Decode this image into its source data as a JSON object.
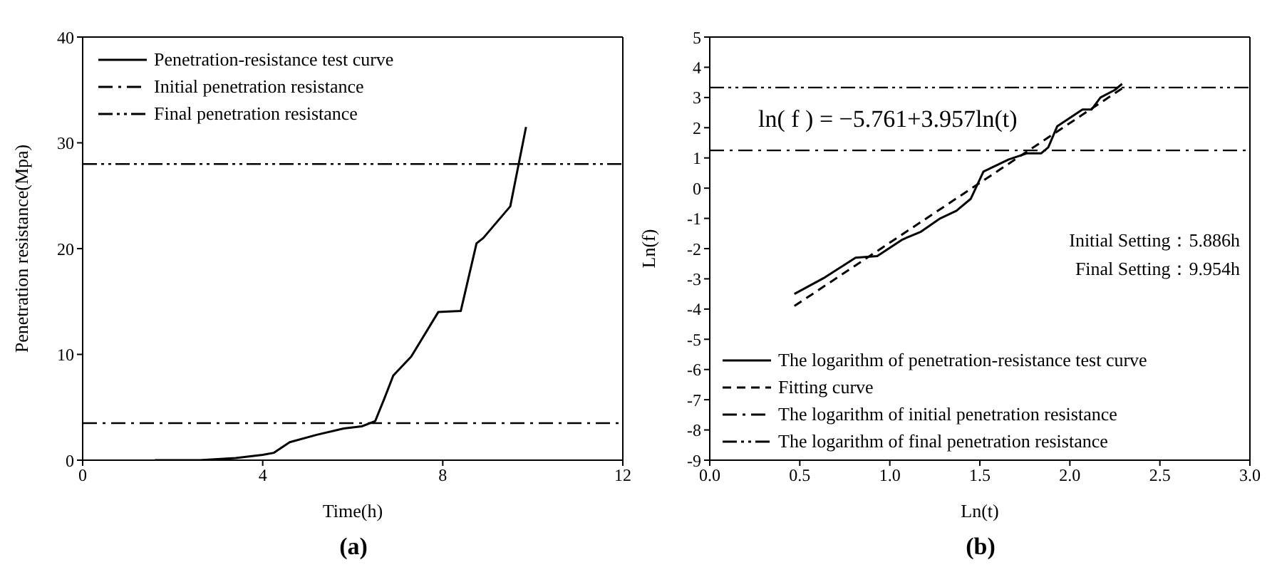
{
  "chart_data": [
    {
      "type": "line",
      "title": "(a)",
      "xlabel": "Time(h)",
      "ylabel": "Penetration resistance(Mpa)",
      "xlim": [
        0,
        12
      ],
      "xticks": [
        0,
        4,
        8,
        12
      ],
      "ylim": [
        0,
        40
      ],
      "yticks": [
        0,
        10,
        20,
        30,
        40
      ],
      "legend": "top left",
      "series": [
        {
          "name": "Penetration-resistance test curve",
          "color": "#000000",
          "line_style": "solid",
          "x": [
            1.6,
            2.6,
            3.4,
            4.0,
            4.25,
            4.6,
            5.2,
            5.8,
            6.2,
            6.5,
            6.7,
            6.9,
            7.3,
            7.9,
            8.4,
            8.75,
            8.9,
            9.5,
            9.85
          ],
          "values": [
            0,
            0,
            0.2,
            0.5,
            0.7,
            1.7,
            2.4,
            3.0,
            3.2,
            3.7,
            5.8,
            8,
            9.8,
            14,
            14.1,
            20.5,
            21,
            24,
            31.5
          ]
        }
      ],
      "ref_lines": [
        {
          "axis": "y",
          "value": 3.5,
          "label": "Initial penetration resistance",
          "color": "#000000",
          "line_style": "dashdot"
        },
        {
          "axis": "y",
          "value": 28,
          "label": "Final penetration resistance",
          "color": "#000000",
          "line_style": "dashdotdot"
        }
      ]
    },
    {
      "type": "line",
      "title": "(b)",
      "xlabel": "Ln(t)",
      "ylabel": "Ln(f)",
      "xlim": [
        0,
        3
      ],
      "xticks": [
        {
          "value": 0,
          "label": "0.0"
        },
        0.5,
        {
          "value": 1,
          "label": "1.0"
        },
        1.5,
        {
          "value": 2,
          "label": "2.0"
        },
        2.5,
        {
          "value": 3,
          "label": "3.0"
        }
      ],
      "ylim": [
        -9,
        5
      ],
      "yticks": [
        -9,
        -8,
        -7,
        -6,
        -5,
        -4,
        -3,
        -2,
        -1,
        0,
        1,
        2,
        3,
        4,
        5
      ],
      "legend": "bottom left",
      "annotations": [
        "ln( f ) = −5.761+3.957ln(t)",
        "Initial Setting：5.886h",
        "Final  Setting：9.954h"
      ],
      "series": [
        {
          "name": "The logarithm of penetration-resistance test curve",
          "color": "#000000",
          "line_style": "solid",
          "x": [
            0.47,
            0.64,
            0.81,
            0.93,
            1.07,
            1.17,
            1.28,
            1.37,
            1.45,
            1.52,
            1.66,
            1.76,
            1.84,
            1.88,
            1.93,
            2.07,
            2.12,
            2.17,
            2.25,
            2.29
          ],
          "values": [
            -3.5,
            -2.95,
            -2.3,
            -2.25,
            -1.7,
            -1.45,
            -1.0,
            -0.75,
            -0.35,
            0.55,
            0.95,
            1.15,
            1.15,
            1.35,
            2.05,
            2.6,
            2.6,
            3.0,
            3.25,
            3.45
          ]
        },
        {
          "name": "Fitting curve",
          "color": "#000000",
          "line_style": "dashed",
          "x": [
            0.47,
            2.29
          ],
          "values": [
            -3.9,
            3.3
          ]
        }
      ],
      "ref_lines": [
        {
          "axis": "y",
          "value": 1.25,
          "label": "The logarithm of  initial penetration resistance",
          "color": "#000000",
          "line_style": "dashdot"
        },
        {
          "axis": "y",
          "value": 3.33,
          "label": "The logarithm of final penetration resistance",
          "color": "#000000",
          "line_style": "dashdotdot"
        }
      ]
    }
  ]
}
